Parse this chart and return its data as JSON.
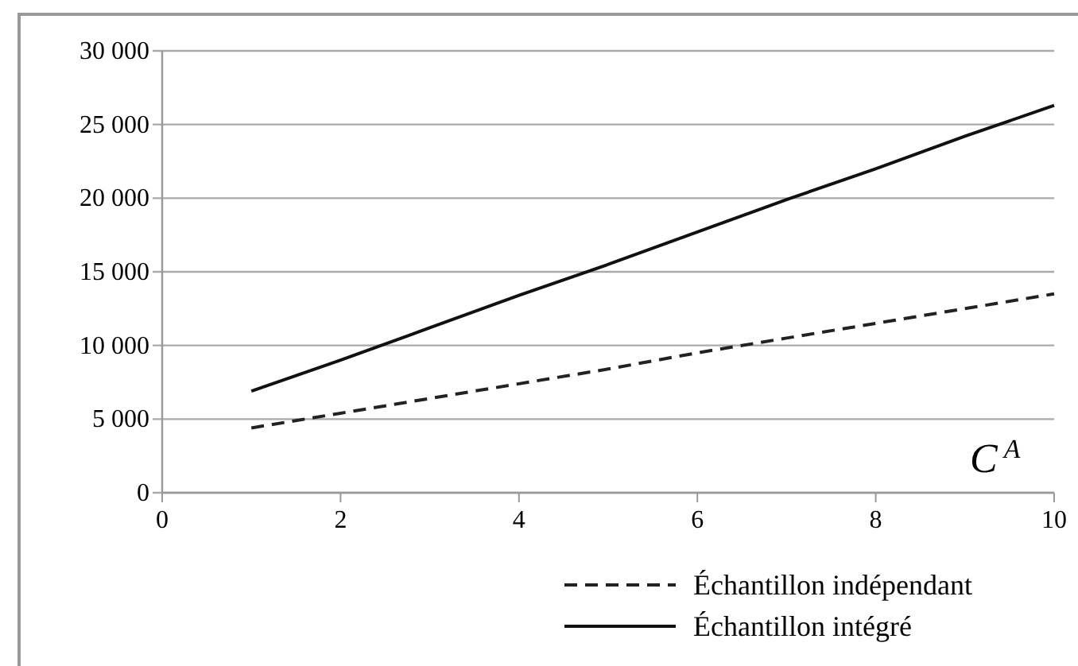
{
  "chart_data": {
    "type": "line",
    "xlabel": "C$^{A}$",
    "x": [
      1,
      2,
      3,
      4,
      5,
      6,
      7,
      8,
      9,
      10
    ],
    "series": [
      {
        "name": "Échantillon indépendant",
        "color": "#222222",
        "line_style": "dashed",
        "values": [
          4400,
          5400,
          6400,
          7400,
          8400,
          9500,
          10500,
          11500,
          12500,
          13500
        ]
      },
      {
        "name": "Échantillon intégré",
        "color": "#111111",
        "line_style": "solid",
        "values": [
          6900,
          9000,
          11200,
          13400,
          15500,
          17700,
          19900,
          22000,
          24200,
          26300
        ]
      }
    ],
    "xlim": [
      0,
      10
    ],
    "xticks": [
      0,
      2,
      4,
      6,
      8,
      10
    ],
    "ylim": [
      0,
      30000
    ],
    "yticks": [
      {
        "value": 0,
        "label": "0"
      },
      {
        "value": 5000,
        "label": "5 000"
      },
      {
        "value": 10000,
        "label": "10 000"
      },
      {
        "value": 15000,
        "label": "15 000"
      },
      {
        "value": 20000,
        "label": "20 000"
      },
      {
        "value": 25000,
        "label": "25 000"
      },
      {
        "value": 30000,
        "label": "30 000"
      }
    ],
    "grid": "y",
    "legend": "bottom right",
    "marker": "none"
  }
}
